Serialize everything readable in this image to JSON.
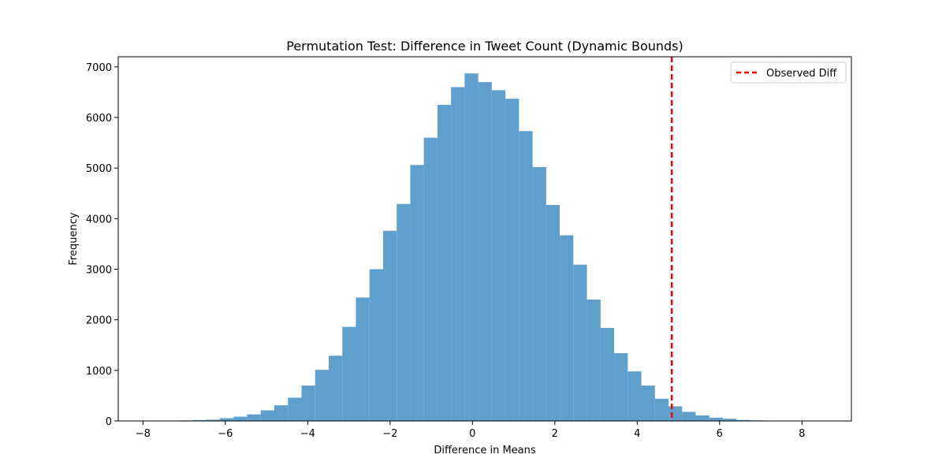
{
  "chart_data": {
    "type": "bar",
    "title": "Permutation Test: Difference in Tweet Count (Dynamic Bounds)",
    "xlabel": "Difference in Means",
    "ylabel": "Frequency",
    "xlim": [
      -8.6,
      9.2
    ],
    "ylim": [
      0,
      7200
    ],
    "x_ticks": [
      -8,
      -6,
      -4,
      -2,
      0,
      2,
      4,
      6,
      8
    ],
    "x_tick_labels": [
      "−8",
      "−6",
      "−4",
      "−2",
      "0",
      "2",
      "4",
      "6",
      "8"
    ],
    "y_ticks": [
      0,
      1000,
      2000,
      3000,
      4000,
      5000,
      6000,
      7000
    ],
    "y_tick_labels": [
      "0",
      "1000",
      "2000",
      "3000",
      "4000",
      "5000",
      "6000",
      "7000"
    ],
    "bar_color": "#5f9fcb",
    "bins": [
      {
        "x0": -7.78,
        "x1": -7.45,
        "value": 4
      },
      {
        "x0": -7.45,
        "x1": -7.12,
        "value": 6
      },
      {
        "x0": -7.12,
        "x1": -6.79,
        "value": 10
      },
      {
        "x0": -6.79,
        "x1": -6.46,
        "value": 18
      },
      {
        "x0": -6.46,
        "x1": -6.13,
        "value": 25
      },
      {
        "x0": -6.13,
        "x1": -5.8,
        "value": 55
      },
      {
        "x0": -5.8,
        "x1": -5.47,
        "value": 85
      },
      {
        "x0": -5.47,
        "x1": -5.14,
        "value": 130
      },
      {
        "x0": -5.14,
        "x1": -4.81,
        "value": 210
      },
      {
        "x0": -4.81,
        "x1": -4.48,
        "value": 310
      },
      {
        "x0": -4.48,
        "x1": -4.15,
        "value": 460
      },
      {
        "x0": -4.15,
        "x1": -3.82,
        "value": 700
      },
      {
        "x0": -3.82,
        "x1": -3.49,
        "value": 1010
      },
      {
        "x0": -3.49,
        "x1": -3.16,
        "value": 1290
      },
      {
        "x0": -3.16,
        "x1": -2.83,
        "value": 1860
      },
      {
        "x0": -2.83,
        "x1": -2.5,
        "value": 2440
      },
      {
        "x0": -2.5,
        "x1": -2.17,
        "value": 3000
      },
      {
        "x0": -2.17,
        "x1": -1.84,
        "value": 3760
      },
      {
        "x0": -1.84,
        "x1": -1.51,
        "value": 4290
      },
      {
        "x0": -1.51,
        "x1": -1.18,
        "value": 5060
      },
      {
        "x0": -1.18,
        "x1": -0.85,
        "value": 5600
      },
      {
        "x0": -0.85,
        "x1": -0.52,
        "value": 6250
      },
      {
        "x0": -0.52,
        "x1": -0.19,
        "value": 6600
      },
      {
        "x0": -0.19,
        "x1": 0.14,
        "value": 6870
      },
      {
        "x0": 0.14,
        "x1": 0.47,
        "value": 6700
      },
      {
        "x0": 0.47,
        "x1": 0.8,
        "value": 6540
      },
      {
        "x0": 0.8,
        "x1": 1.13,
        "value": 6370
      },
      {
        "x0": 1.13,
        "x1": 1.46,
        "value": 5730
      },
      {
        "x0": 1.46,
        "x1": 1.79,
        "value": 5020
      },
      {
        "x0": 1.79,
        "x1": 2.12,
        "value": 4270
      },
      {
        "x0": 2.12,
        "x1": 2.45,
        "value": 3670
      },
      {
        "x0": 2.45,
        "x1": 2.78,
        "value": 3090
      },
      {
        "x0": 2.78,
        "x1": 3.11,
        "value": 2400
      },
      {
        "x0": 3.11,
        "x1": 3.44,
        "value": 1840
      },
      {
        "x0": 3.44,
        "x1": 3.77,
        "value": 1340
      },
      {
        "x0": 3.77,
        "x1": 4.1,
        "value": 980
      },
      {
        "x0": 4.1,
        "x1": 4.43,
        "value": 700
      },
      {
        "x0": 4.43,
        "x1": 4.76,
        "value": 440
      },
      {
        "x0": 4.76,
        "x1": 5.09,
        "value": 290
      },
      {
        "x0": 5.09,
        "x1": 5.42,
        "value": 180
      },
      {
        "x0": 5.42,
        "x1": 5.75,
        "value": 110
      },
      {
        "x0": 5.75,
        "x1": 6.08,
        "value": 65
      },
      {
        "x0": 6.08,
        "x1": 6.41,
        "value": 45
      },
      {
        "x0": 6.41,
        "x1": 6.74,
        "value": 20
      },
      {
        "x0": 6.74,
        "x1": 7.07,
        "value": 12
      },
      {
        "x0": 7.07,
        "x1": 7.4,
        "value": 6
      },
      {
        "x0": 7.4,
        "x1": 7.73,
        "value": 4
      },
      {
        "x0": 7.73,
        "x1": 8.06,
        "value": 3
      },
      {
        "x0": 8.06,
        "x1": 8.39,
        "value": 2
      },
      {
        "x0": 8.39,
        "x1": 8.72,
        "value": 1
      }
    ],
    "observed_diff": {
      "x": 4.84,
      "label": "Observed Diff",
      "color": "#ff0000"
    },
    "legend": {
      "position": "upper right",
      "entries": [
        "Observed Diff"
      ]
    }
  }
}
